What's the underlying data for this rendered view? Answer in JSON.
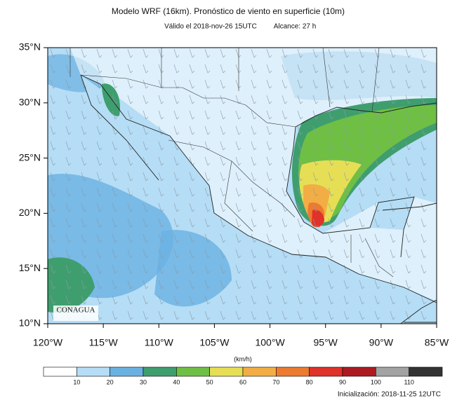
{
  "title": "Modelo WRF (16km). Pronóstico de viento en superficie (10m)",
  "subtitle": {
    "valid": "Válido el 2018-nov-26 15UTC",
    "lead": "Alcance: 27 h"
  },
  "map": {
    "lat_labels": [
      "35°N",
      "30°N",
      "25°N",
      "20°N",
      "15°N",
      "10°N"
    ],
    "lon_labels": [
      "120°W",
      "115°W",
      "110°W",
      "105°W",
      "100°W",
      "95°W",
      "90°W",
      "85°W"
    ],
    "logo": "CONAGUA"
  },
  "colorbar": {
    "unit": "(km/h)",
    "labels": [
      "10",
      "20",
      "30",
      "40",
      "50",
      "60",
      "70",
      "80",
      "90",
      "100",
      "110"
    ],
    "colors": [
      "#ffffff",
      "#b5ddf5",
      "#6ab1e2",
      "#3f9e6e",
      "#6fbf45",
      "#e6df55",
      "#f2ae45",
      "#ec7a30",
      "#de322a",
      "#ad1b22",
      "#a3a3a3",
      "#333333"
    ]
  },
  "footer": "Inicialización: 2018-11-25 12UTC"
}
